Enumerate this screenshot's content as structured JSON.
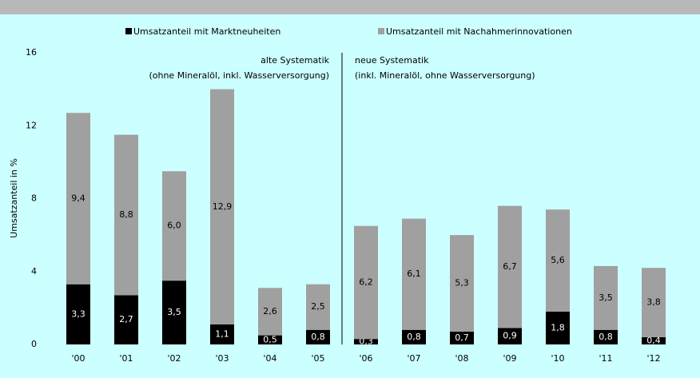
{
  "chart_data": {
    "type": "stacked_bar",
    "categories": [
      "'00",
      "'01",
      "'02",
      "'03",
      "'04",
      "'05",
      "'06",
      "'07",
      "'08",
      "'09",
      "'10",
      "'11",
      "'12"
    ],
    "series": [
      {
        "name": "Umsatzanteil mit Marktneuheiten",
        "color": "#000000",
        "values": [
          3.3,
          2.7,
          3.5,
          1.1,
          0.5,
          0.8,
          0.3,
          0.8,
          0.7,
          0.9,
          1.8,
          0.8,
          0.4
        ],
        "value_labels": [
          "3,3",
          "2,7",
          "3,5",
          "1,1",
          "0,5",
          "0,8",
          "0,3",
          "0,8",
          "0,7",
          "0,9",
          "1,8",
          "0,8",
          "0,4"
        ]
      },
      {
        "name": "Umsatzanteil mit Nachahmerinnovationen",
        "color": "#a0a0a0",
        "values": [
          9.4,
          8.8,
          6.0,
          12.9,
          2.6,
          2.5,
          6.2,
          6.1,
          5.3,
          6.7,
          5.6,
          3.5,
          3.8
        ],
        "value_labels": [
          "9,4",
          "8,8",
          "6,0",
          "12,9",
          "2,6",
          "2,5",
          "6,2",
          "6,1",
          "5,3",
          "6,7",
          "5,6",
          "3,5",
          "3,8"
        ]
      }
    ],
    "y_label": "Umsatzanteil in %",
    "annotations": [
      "alte Systematik",
      "(ohne Mineralöl, inkl. Wasserversorgung)",
      "neue Systematik",
      "(inkl. Mineralöl, ohne Wasserversorgung)"
    ],
    "ylim": [
      0,
      16
    ],
    "yticks": [
      0,
      4,
      8,
      12,
      16
    ],
    "grid": false
  }
}
